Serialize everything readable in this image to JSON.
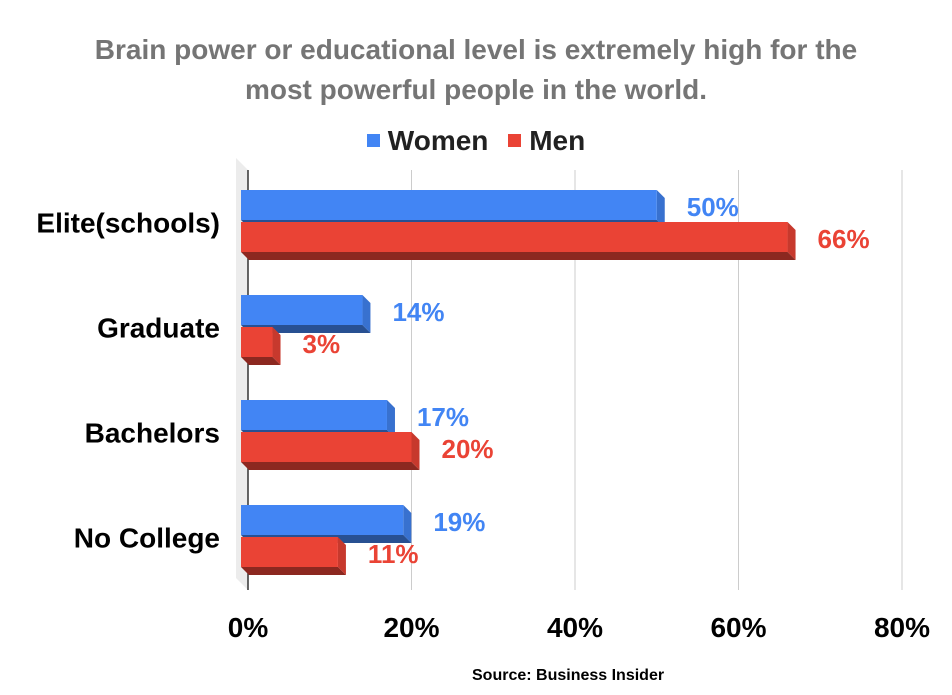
{
  "chart_data": {
    "type": "bar",
    "orientation": "horizontal",
    "title_lines": [
      "Brain power or educational level is extremely high for the",
      "most powerful people in the world."
    ],
    "categories": [
      "Elite(schools)",
      "Graduate",
      "Bachelors",
      "No College"
    ],
    "series": [
      {
        "name": "Women",
        "values": [
          50,
          14,
          17,
          19
        ],
        "color": "#4285f4",
        "labels": [
          "50%",
          "14%",
          "17%",
          "19%"
        ]
      },
      {
        "name": "Men",
        "values": [
          66,
          3,
          20,
          11
        ],
        "color": "#ea4335",
        "labels": [
          "66%",
          "3%",
          "20%",
          "11%"
        ]
      }
    ],
    "xlim": [
      0,
      80
    ],
    "xticks": [
      0,
      20,
      40,
      60,
      80
    ],
    "xtick_labels": [
      "0%",
      "20%",
      "40%",
      "60%",
      "80%"
    ],
    "grid": true,
    "legend_position": "top",
    "source": "Source: Business Insider"
  }
}
